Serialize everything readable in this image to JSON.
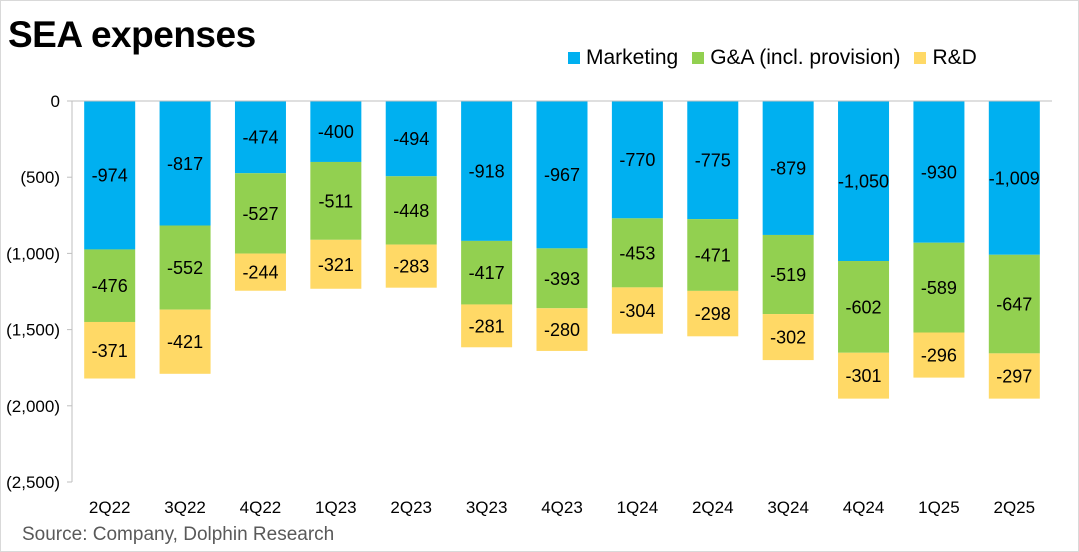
{
  "title": "SEA expenses",
  "source": "Source: Company, Dolphin Research",
  "legend": [
    {
      "label": "Marketing",
      "color": "#00b0f0"
    },
    {
      "label": "G&A (incl. provision)",
      "color": "#92d050"
    },
    {
      "label": "R&D",
      "color": "#ffd966"
    }
  ],
  "chart_data": {
    "type": "bar",
    "stacked": true,
    "title": "SEA expenses",
    "categories": [
      "2Q22",
      "3Q22",
      "4Q22",
      "1Q23",
      "2Q23",
      "3Q23",
      "4Q23",
      "1Q24",
      "2Q24",
      "3Q24",
      "4Q24",
      "1Q25",
      "2Q25"
    ],
    "series": [
      {
        "name": "Marketing",
        "color": "#00b0f0",
        "values": [
          -974,
          -817,
          -474,
          -400,
          -494,
          -918,
          -967,
          -770,
          -775,
          -879,
          -1050,
          -930,
          -1009
        ],
        "labels": [
          "-974",
          "-817",
          "-474",
          "-400",
          "-494",
          "-918",
          "-967",
          "-770",
          "-775",
          "-879",
          "-1,050",
          "-930",
          "-1,009"
        ]
      },
      {
        "name": "G&A (incl. provision)",
        "color": "#92d050",
        "values": [
          -476,
          -552,
          -527,
          -511,
          -448,
          -417,
          -393,
          -453,
          -471,
          -519,
          -602,
          -589,
          -647
        ],
        "labels": [
          "-476",
          "-552",
          "-527",
          "-511",
          "-448",
          "-417",
          "-393",
          "-453",
          "-471",
          "-519",
          "-602",
          "-589",
          "-647"
        ]
      },
      {
        "name": "R&D",
        "color": "#ffd966",
        "values": [
          -371,
          -421,
          -244,
          -321,
          -283,
          -281,
          -280,
          -304,
          -298,
          -302,
          -301,
          -296,
          -297
        ],
        "labels": [
          "-371",
          "-421",
          "-244",
          "-321",
          "-283",
          "-281",
          "-280",
          "-304",
          "-298",
          "-302",
          "-301",
          "-296",
          "-297"
        ]
      }
    ],
    "ylim": [
      -2500,
      0
    ],
    "yticks": [
      0,
      -500,
      -1000,
      -1500,
      -2000,
      -2500
    ],
    "ytick_labels": [
      "0",
      "(500)",
      "(1,000)",
      "(1,500)",
      "(2,000)",
      "(2,500)"
    ],
    "grid": false,
    "legend_position": "top-right"
  }
}
